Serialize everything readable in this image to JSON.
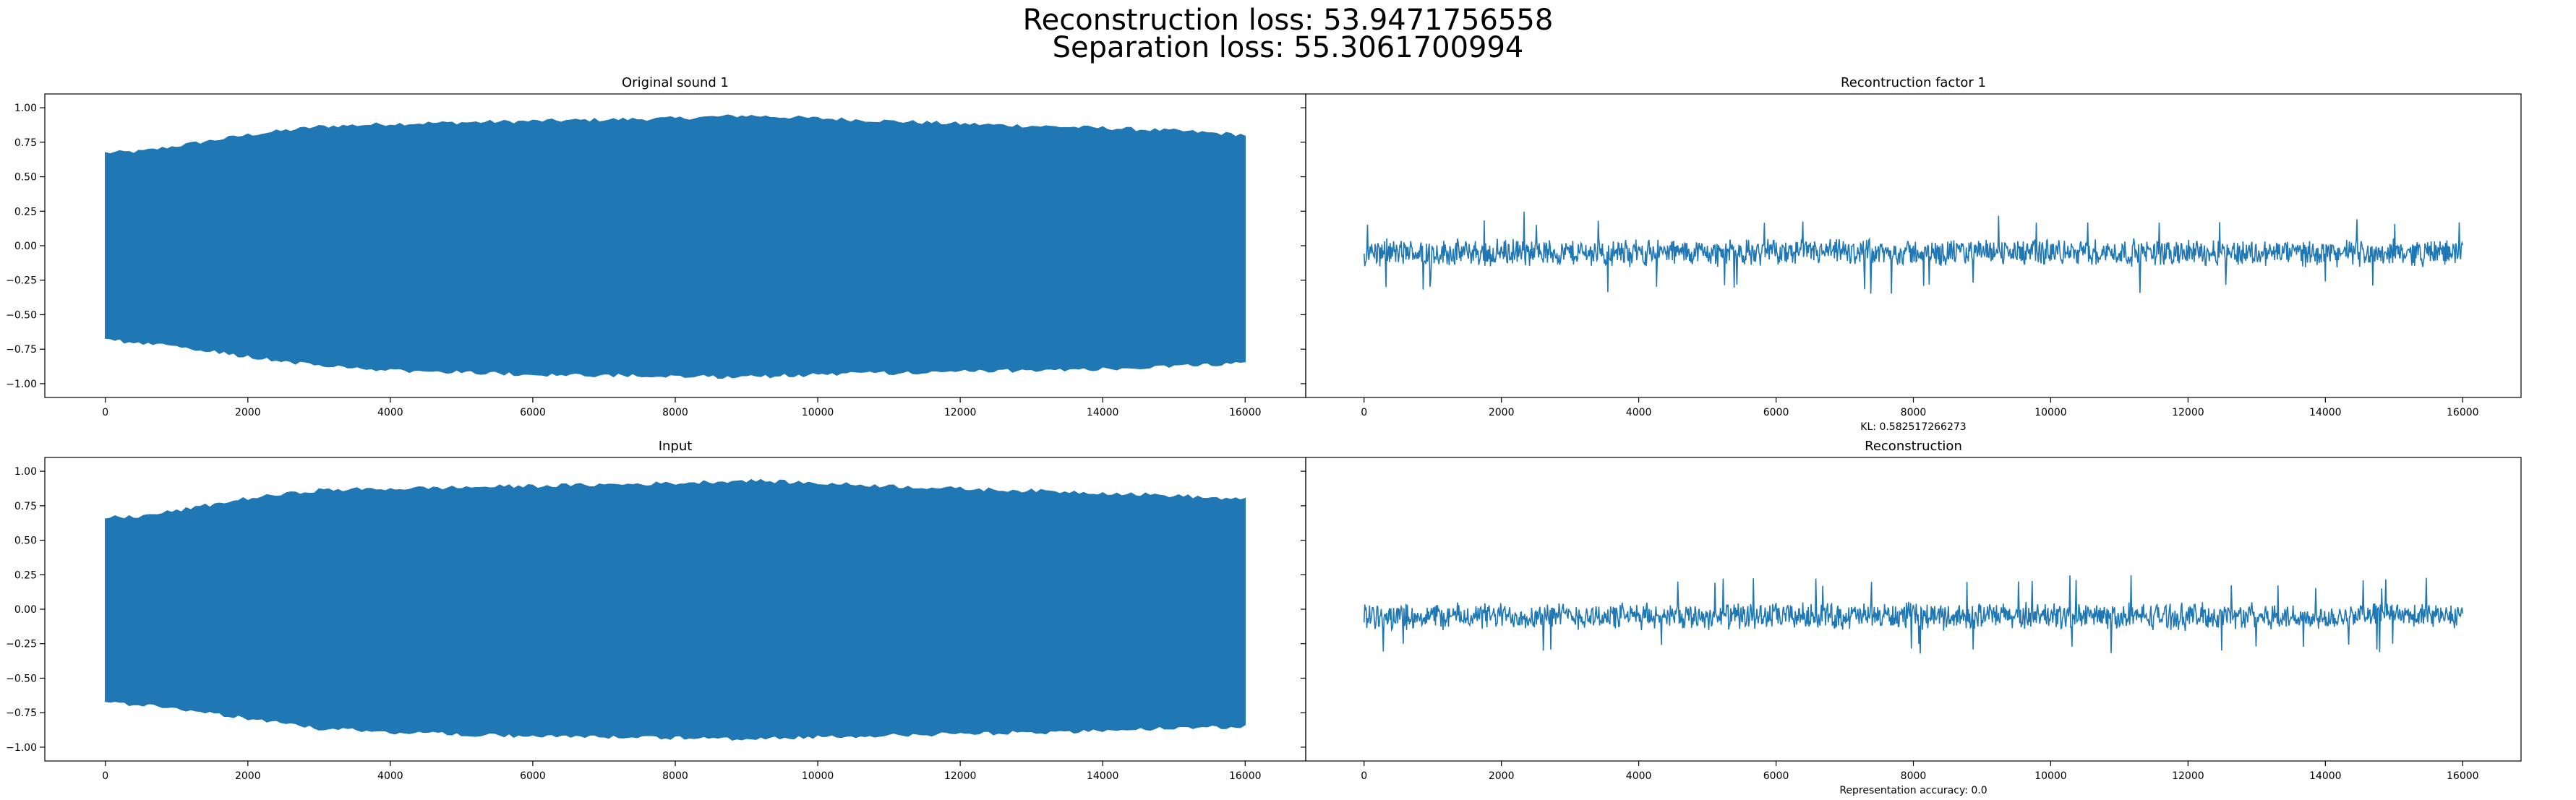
{
  "figure": {
    "suptitle_line1": "Reconstruction loss: 53.9471756558",
    "suptitle_line2": "Separation loss: 55.3061700994",
    "line_color": "#1f77b4"
  },
  "chart_data": [
    {
      "type": "line",
      "title": "Original sound 1",
      "xlabel": "",
      "ylabel": "",
      "xlim": [
        -850,
        16850
      ],
      "ylim": [
        -1.1,
        1.1
      ],
      "x_ticks": [
        0,
        2000,
        4000,
        6000,
        8000,
        10000,
        12000,
        14000,
        16000
      ],
      "y_ticks": [
        -1.0,
        -0.75,
        -0.5,
        -0.25,
        0.0,
        0.25,
        0.5,
        0.75,
        1.0
      ],
      "y_tick_labels": [
        "−1.00",
        "−0.75",
        "−0.50",
        "−0.25",
        "0.00",
        "0.25",
        "0.50",
        "0.75",
        "1.00"
      ],
      "series": [
        {
          "style": "dense-oscillation",
          "n_samples": 16000,
          "upper_envelope": [
            [
              0,
              0.67
            ],
            [
              500,
              0.68
            ],
            [
              1000,
              0.72
            ],
            [
              2000,
              0.8
            ],
            [
              3000,
              0.86
            ],
            [
              4000,
              0.88
            ],
            [
              6000,
              0.9
            ],
            [
              8000,
              0.92
            ],
            [
              9000,
              0.94
            ],
            [
              10000,
              0.92
            ],
            [
              12000,
              0.88
            ],
            [
              14000,
              0.85
            ],
            [
              15000,
              0.83
            ],
            [
              16000,
              0.8
            ]
          ],
          "lower_envelope": [
            [
              0,
              -0.68
            ],
            [
              500,
              -0.7
            ],
            [
              1000,
              -0.73
            ],
            [
              2000,
              -0.8
            ],
            [
              3000,
              -0.87
            ],
            [
              4000,
              -0.9
            ],
            [
              6000,
              -0.93
            ],
            [
              8000,
              -0.94
            ],
            [
              9000,
              -0.95
            ],
            [
              10000,
              -0.93
            ],
            [
              12000,
              -0.91
            ],
            [
              14000,
              -0.89
            ],
            [
              15000,
              -0.87
            ],
            [
              16000,
              -0.85
            ]
          ]
        }
      ]
    },
    {
      "type": "line",
      "title": "Recontruction factor 1",
      "xlabel": "KL: 0.582517266273",
      "ylabel": "",
      "xlim": [
        -850,
        16850
      ],
      "ylim": [
        -1.1,
        1.1
      ],
      "x_ticks": [
        0,
        2000,
        4000,
        6000,
        8000,
        10000,
        12000,
        14000,
        16000
      ],
      "shared_y_with": "Original sound 1",
      "series": [
        {
          "style": "noise",
          "n_samples": 16000,
          "center": -0.05,
          "amplitude": 0.11,
          "peak_range": [
            -0.35,
            0.25
          ]
        }
      ]
    },
    {
      "type": "line",
      "title": "Input",
      "xlabel": "",
      "ylabel": "",
      "xlim": [
        -850,
        16850
      ],
      "ylim": [
        -1.1,
        1.1
      ],
      "x_ticks": [
        0,
        2000,
        4000,
        6000,
        8000,
        10000,
        12000,
        14000,
        16000
      ],
      "y_ticks": [
        -1.0,
        -0.75,
        -0.5,
        -0.25,
        0.0,
        0.25,
        0.5,
        0.75,
        1.0
      ],
      "y_tick_labels": [
        "−1.00",
        "−0.75",
        "−0.50",
        "−0.25",
        "0.00",
        "0.25",
        "0.50",
        "0.75",
        "1.00"
      ],
      "series": [
        {
          "style": "dense-oscillation",
          "n_samples": 16000,
          "upper_envelope": [
            [
              0,
              0.66
            ],
            [
              500,
              0.67
            ],
            [
              1000,
              0.71
            ],
            [
              2000,
              0.8
            ],
            [
              3000,
              0.86
            ],
            [
              4000,
              0.87
            ],
            [
              6000,
              0.89
            ],
            [
              8000,
              0.91
            ],
            [
              9000,
              0.93
            ],
            [
              10000,
              0.91
            ],
            [
              12000,
              0.87
            ],
            [
              14000,
              0.84
            ],
            [
              15000,
              0.82
            ],
            [
              16000,
              0.79
            ]
          ],
          "lower_envelope": [
            [
              0,
              -0.67
            ],
            [
              500,
              -0.69
            ],
            [
              1000,
              -0.72
            ],
            [
              2000,
              -0.79
            ],
            [
              3000,
              -0.86
            ],
            [
              4000,
              -0.89
            ],
            [
              6000,
              -0.92
            ],
            [
              8000,
              -0.93
            ],
            [
              9000,
              -0.94
            ],
            [
              10000,
              -0.92
            ],
            [
              12000,
              -0.9
            ],
            [
              14000,
              -0.88
            ],
            [
              15000,
              -0.86
            ],
            [
              16000,
              -0.85
            ]
          ]
        }
      ]
    },
    {
      "type": "line",
      "title": "Reconstruction",
      "xlabel": "Representation accuracy: 0.0",
      "ylabel": "",
      "xlim": [
        -850,
        16850
      ],
      "ylim": [
        -1.1,
        1.1
      ],
      "x_ticks": [
        0,
        2000,
        4000,
        6000,
        8000,
        10000,
        12000,
        14000,
        16000
      ],
      "shared_y_with": "Input",
      "series": [
        {
          "style": "noise",
          "n_samples": 16000,
          "center": -0.05,
          "amplitude": 0.11,
          "peak_range": [
            -0.35,
            0.25
          ]
        }
      ]
    }
  ]
}
